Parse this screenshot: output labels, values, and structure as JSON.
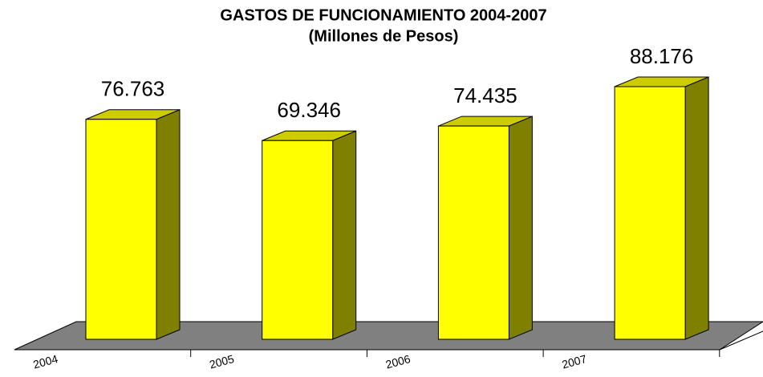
{
  "chart_data": {
    "type": "bar3d",
    "title": "GASTOS DE FUNCIONAMIENTO 2004-2007",
    "subtitle": "(Millones de Pesos)",
    "categories": [
      "2004",
      "2005",
      "2006",
      "2007"
    ],
    "values": [
      76763,
      69346,
      74435,
      88176
    ],
    "value_labels": [
      "76.763",
      "69.346",
      "74.435",
      "88.176"
    ],
    "color": "#ffff00",
    "side_color": "#808000",
    "top_color": "#cccc00",
    "floor_color": "#808080"
  }
}
